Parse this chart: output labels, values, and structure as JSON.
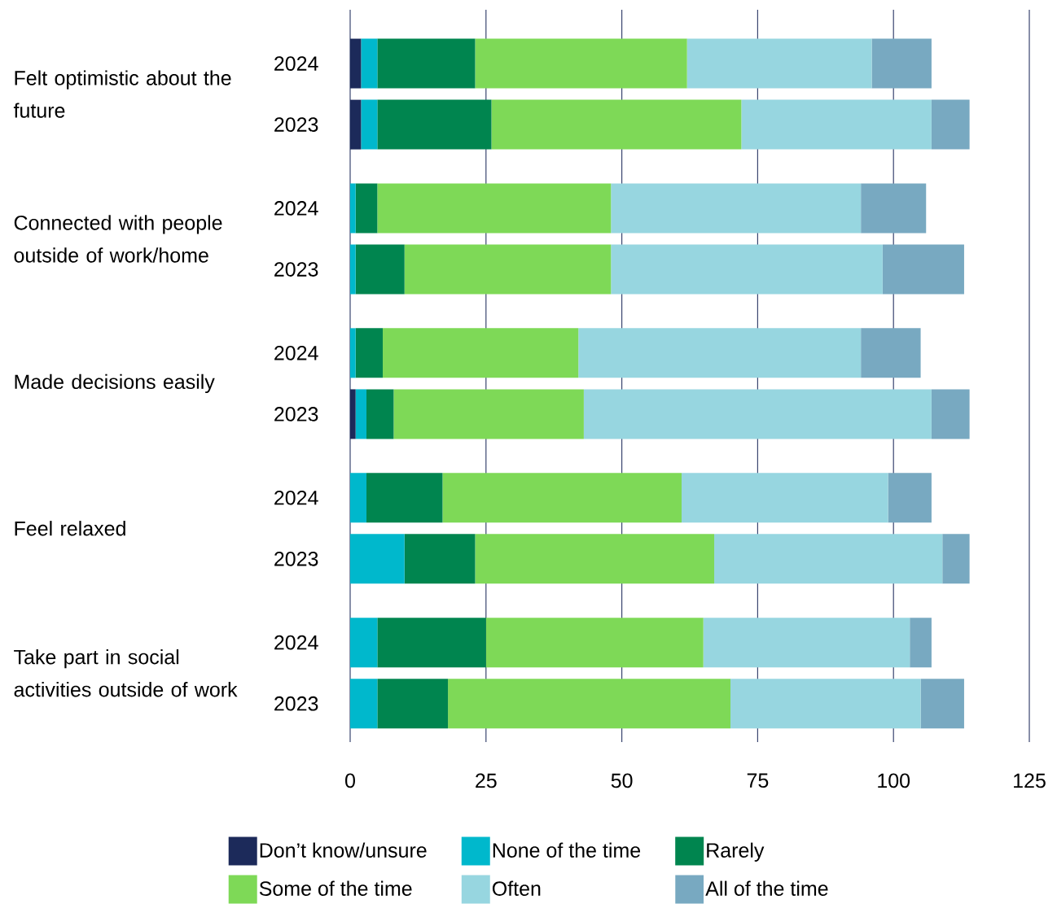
{
  "chart_data": {
    "type": "bar",
    "orientation": "horizontal",
    "stacked": true,
    "categories": [
      "2024",
      "2023",
      "2024",
      "2023",
      "2024",
      "2023",
      "2024",
      "2023",
      "2024",
      "2023"
    ],
    "annotations": [
      "Felt optimistic about the future",
      "Connected with people outside of work/home",
      "Made decisions easily",
      "Feel relaxed",
      "Take part in social activities outside of work"
    ],
    "series": [
      {
        "name": "Don’t know/unsure",
        "color": "#1c2a5a",
        "values": [
          2,
          2,
          0,
          0,
          0,
          1,
          0,
          0,
          0,
          0
        ]
      },
      {
        "name": "None of the time",
        "color": "#00b8cc",
        "values": [
          3,
          3,
          1,
          1,
          1,
          2,
          3,
          10,
          5,
          5
        ]
      },
      {
        "name": "Rarely",
        "color": "#00854f",
        "values": [
          18,
          21,
          4,
          9,
          5,
          5,
          14,
          13,
          20,
          13
        ]
      },
      {
        "name": "Some of the time",
        "color": "#7ed957",
        "values": [
          39,
          46,
          43,
          38,
          36,
          35,
          44,
          44,
          40,
          52
        ]
      },
      {
        "name": "Often",
        "color": "#97d6e0",
        "values": [
          34,
          35,
          46,
          50,
          52,
          64,
          38,
          42,
          38,
          35
        ]
      },
      {
        "name": "All of the time",
        "color": "#78a9c1",
        "values": [
          11,
          7,
          12,
          15,
          11,
          7,
          8,
          5,
          4,
          8
        ]
      }
    ],
    "xlim": [
      0,
      125
    ],
    "xticks": [
      0,
      25,
      50,
      75,
      100,
      125
    ],
    "grid": "x",
    "legend": "bottom"
  }
}
